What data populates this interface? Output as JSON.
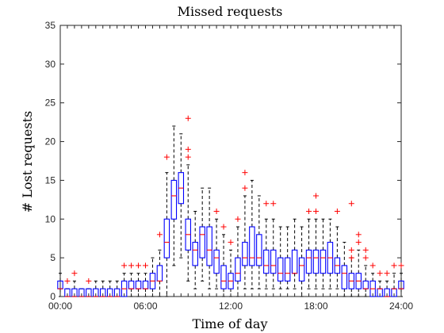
{
  "chart_data": {
    "type": "box",
    "title": "Missed requests",
    "xlabel": "Time of day",
    "ylabel": "# Lost requests",
    "xlim": [
      0,
      24
    ],
    "ylim": [
      0,
      35
    ],
    "x_ticks": [
      {
        "value": 0,
        "label": "00:00"
      },
      {
        "value": 6,
        "label": "06:00"
      },
      {
        "value": 12,
        "label": "12:00"
      },
      {
        "value": 18,
        "label": "18:00"
      },
      {
        "value": 24,
        "label": "24:00"
      }
    ],
    "y_ticks": [
      0,
      5,
      10,
      15,
      20,
      25,
      30,
      35
    ],
    "grid": false,
    "colors": {
      "box": "#0000ff",
      "median": "#ff0000",
      "whisker": "#000000",
      "outlier": "#ff0000",
      "axes": "#262626"
    },
    "boxes": [
      {
        "x": 0.0,
        "min": 0,
        "q1": 1,
        "median": 1,
        "q3": 2,
        "max": 3,
        "outliers": []
      },
      {
        "x": 0.5,
        "min": 0,
        "q1": 0,
        "median": 0,
        "q3": 1,
        "max": 1,
        "outliers": [
          2
        ]
      },
      {
        "x": 1.0,
        "min": 0,
        "q1": 0,
        "median": 0,
        "q3": 1,
        "max": 2,
        "outliers": [
          3
        ]
      },
      {
        "x": 1.5,
        "min": 0,
        "q1": 0,
        "median": 0,
        "q3": 1,
        "max": 1,
        "outliers": []
      },
      {
        "x": 2.0,
        "min": 0,
        "q1": 0,
        "median": 0,
        "q3": 1,
        "max": 1,
        "outliers": [
          2
        ]
      },
      {
        "x": 2.5,
        "min": 0,
        "q1": 0,
        "median": 0,
        "q3": 1,
        "max": 2,
        "outliers": []
      },
      {
        "x": 3.0,
        "min": 0,
        "q1": 0,
        "median": 0,
        "q3": 1,
        "max": 2,
        "outliers": []
      },
      {
        "x": 3.5,
        "min": 0,
        "q1": 0,
        "median": 0,
        "q3": 1,
        "max": 2,
        "outliers": []
      },
      {
        "x": 4.0,
        "min": 0,
        "q1": 0,
        "median": 0,
        "q3": 1,
        "max": 2,
        "outliers": []
      },
      {
        "x": 4.5,
        "min": 0,
        "q1": 0,
        "median": 1,
        "q3": 2,
        "max": 3,
        "outliers": [
          4
        ]
      },
      {
        "x": 5.0,
        "min": 0,
        "q1": 1,
        "median": 1,
        "q3": 2,
        "max": 3,
        "outliers": [
          4
        ]
      },
      {
        "x": 5.5,
        "min": 0,
        "q1": 1,
        "median": 1,
        "q3": 2,
        "max": 3,
        "outliers": [
          4
        ]
      },
      {
        "x": 6.0,
        "min": 0,
        "q1": 1,
        "median": 1,
        "q3": 2,
        "max": 3,
        "outliers": [
          4
        ]
      },
      {
        "x": 6.5,
        "min": 0,
        "q1": 1,
        "median": 2,
        "q3": 3,
        "max": 5,
        "outliers": []
      },
      {
        "x": 7.0,
        "min": 0,
        "q1": 2,
        "median": 2,
        "q3": 4,
        "max": 6,
        "outliers": [
          8
        ]
      },
      {
        "x": 7.5,
        "min": 0,
        "q1": 5,
        "median": 7,
        "q3": 10,
        "max": 16,
        "outliers": [
          18
        ]
      },
      {
        "x": 8.0,
        "min": 4,
        "q1": 10,
        "median": 13,
        "q3": 15,
        "max": 22,
        "outliers": []
      },
      {
        "x": 8.5,
        "min": 5,
        "q1": 12,
        "median": 14,
        "q3": 16,
        "max": 21,
        "outliers": []
      },
      {
        "x": 9.0,
        "min": 2,
        "q1": 6,
        "median": 8,
        "q3": 10,
        "max": 17,
        "outliers": [
          18,
          19,
          23
        ]
      },
      {
        "x": 9.5,
        "min": 1,
        "q1": 4,
        "median": 6,
        "q3": 7,
        "max": 11,
        "outliers": []
      },
      {
        "x": 10.0,
        "min": 2,
        "q1": 5,
        "median": 8,
        "q3": 9,
        "max": 14,
        "outliers": []
      },
      {
        "x": 10.5,
        "min": 1,
        "q1": 4,
        "median": 6,
        "q3": 9,
        "max": 14,
        "outliers": []
      },
      {
        "x": 11.0,
        "min": 1,
        "q1": 3,
        "median": 5,
        "q3": 6,
        "max": 10,
        "outliers": [
          11
        ]
      },
      {
        "x": 11.5,
        "min": 0,
        "q1": 1,
        "median": 2,
        "q3": 4,
        "max": 8,
        "outliers": [
          9
        ]
      },
      {
        "x": 12.0,
        "min": 0,
        "q1": 1,
        "median": 2,
        "q3": 3,
        "max": 6,
        "outliers": [
          7
        ]
      },
      {
        "x": 12.5,
        "min": 0,
        "q1": 2,
        "median": 3,
        "q3": 5,
        "max": 9,
        "outliers": [
          10
        ]
      },
      {
        "x": 13.0,
        "min": 1,
        "q1": 4,
        "median": 5,
        "q3": 7,
        "max": 13,
        "outliers": [
          14,
          16
        ]
      },
      {
        "x": 13.5,
        "min": 1,
        "q1": 4,
        "median": 5,
        "q3": 9,
        "max": 15,
        "outliers": []
      },
      {
        "x": 14.0,
        "min": 1,
        "q1": 4,
        "median": 5,
        "q3": 8,
        "max": 13,
        "outliers": []
      },
      {
        "x": 14.5,
        "min": 1,
        "q1": 3,
        "median": 4,
        "q3": 6,
        "max": 10,
        "outliers": [
          12
        ]
      },
      {
        "x": 15.0,
        "min": 1,
        "q1": 3,
        "median": 4,
        "q3": 6,
        "max": 10,
        "outliers": [
          12
        ]
      },
      {
        "x": 15.5,
        "min": 1,
        "q1": 2,
        "median": 3,
        "q3": 5,
        "max": 9,
        "outliers": []
      },
      {
        "x": 16.0,
        "min": 1,
        "q1": 2,
        "median": 3,
        "q3": 5,
        "max": 9,
        "outliers": []
      },
      {
        "x": 16.5,
        "min": 1,
        "q1": 3,
        "median": 3,
        "q3": 6,
        "max": 10,
        "outliers": []
      },
      {
        "x": 17.0,
        "min": 0,
        "q1": 2,
        "median": 4,
        "q3": 5,
        "max": 9,
        "outliers": []
      },
      {
        "x": 17.5,
        "min": 1,
        "q1": 3,
        "median": 5,
        "q3": 6,
        "max": 10,
        "outliers": [
          11
        ]
      },
      {
        "x": 18.0,
        "min": 1,
        "q1": 3,
        "median": 5,
        "q3": 6,
        "max": 10,
        "outliers": [
          11,
          13
        ]
      },
      {
        "x": 18.5,
        "min": 1,
        "q1": 3,
        "median": 5,
        "q3": 6,
        "max": 10,
        "outliers": []
      },
      {
        "x": 19.0,
        "min": 1,
        "q1": 3,
        "median": 5,
        "q3": 7,
        "max": 10,
        "outliers": []
      },
      {
        "x": 19.5,
        "min": 1,
        "q1": 3,
        "median": 4,
        "q3": 5,
        "max": 9,
        "outliers": [
          11
        ]
      },
      {
        "x": 20.0,
        "min": 0,
        "q1": 1,
        "median": 3,
        "q3": 4,
        "max": 7,
        "outliers": []
      },
      {
        "x": 20.5,
        "min": 0,
        "q1": 1,
        "median": 2,
        "q3": 3,
        "max": 5,
        "outliers": [
          5,
          6,
          12
        ]
      },
      {
        "x": 21.0,
        "min": 0,
        "q1": 1,
        "median": 2,
        "q3": 3,
        "max": 6,
        "outliers": [
          7,
          8
        ]
      },
      {
        "x": 21.5,
        "min": 0,
        "q1": 1,
        "median": 1,
        "q3": 2,
        "max": 4,
        "outliers": [
          5,
          6
        ]
      },
      {
        "x": 22.0,
        "min": 0,
        "q1": 0,
        "median": 1,
        "q3": 2,
        "max": 3,
        "outliers": [
          4
        ]
      },
      {
        "x": 22.5,
        "min": 0,
        "q1": 0,
        "median": 1,
        "q3": 1,
        "max": 2,
        "outliers": [
          3
        ]
      },
      {
        "x": 23.0,
        "min": 0,
        "q1": 0,
        "median": 0,
        "q3": 1,
        "max": 2,
        "outliers": [
          3
        ]
      },
      {
        "x": 23.5,
        "min": 0,
        "q1": 0,
        "median": 1,
        "q3": 1,
        "max": 3,
        "outliers": [
          4
        ]
      },
      {
        "x": 24.0,
        "min": 0,
        "q1": 1,
        "median": 1,
        "q3": 2,
        "max": 3,
        "outliers": [
          4
        ]
      }
    ]
  }
}
